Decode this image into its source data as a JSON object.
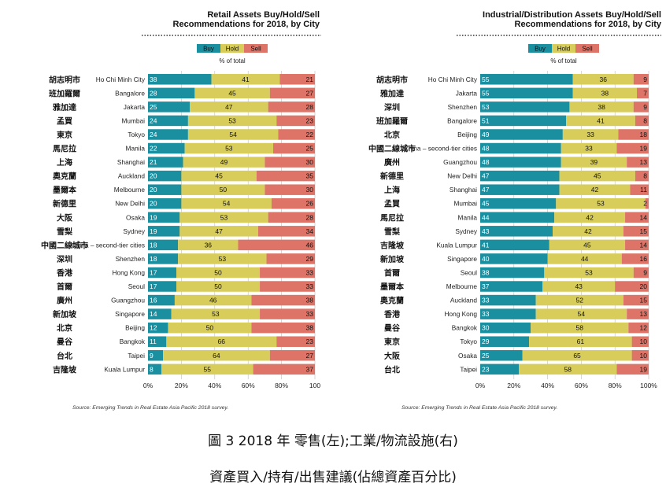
{
  "captions": {
    "line1": "圖 3 2018 年  零售(左);工業/物流設施(右)",
    "line2": "資產買入/持有/出售建議(佔總資產百分比)"
  },
  "chart_data": [
    {
      "type": "bar",
      "stacked": true,
      "orientation": "horizontal",
      "title": "Retail Assets Buy/Hold/Sell\nRecommendations for 2018, by City",
      "legend": [
        "Buy",
        "Hold",
        "Sell"
      ],
      "legend_placement": "top",
      "subtitle": "% of total",
      "xlim": [
        0,
        100
      ],
      "xticks": [
        "0%",
        "20%",
        "40%",
        "60%",
        "80%",
        "100"
      ],
      "colors": {
        "Buy": "#1a8fa0",
        "Hold": "#d8cd5a",
        "Sell": "#dd7467"
      },
      "source": "Source: Emerging Trends in Real Estate Asia Pacific 2018 survey.",
      "categories": [
        "Ho Chi Minh City",
        "Bangalore",
        "Jakarta",
        "Mumbai",
        "Tokyo",
        "Manila",
        "Shanghai",
        "Auckland",
        "Melbourne",
        "New Delhi",
        "Osaka",
        "Sydney",
        "China – second-tier cities",
        "Shenzhen",
        "Hong Kong",
        "Seoul",
        "Guangzhou",
        "Singapore",
        "Beijing",
        "Bangkok",
        "Taipei",
        "Kuala Lumpur"
      ],
      "chinese_labels": [
        "胡志明市",
        "班加羅爾",
        "雅加達",
        "孟買",
        "東京",
        "馬尼拉",
        "上海",
        "奧克蘭",
        "墨爾本",
        "新德里",
        "大阪",
        "雪梨",
        "中國二線城市",
        "深圳",
        "香港",
        "首爾",
        "廣州",
        "新加坡",
        "北京",
        "曼谷",
        "台北",
        "吉隆坡"
      ],
      "series": [
        {
          "name": "Buy",
          "values": [
            38,
            28,
            25,
            24,
            24,
            22,
            21,
            20,
            20,
            20,
            19,
            19,
            18,
            18,
            17,
            17,
            16,
            14,
            12,
            11,
            9,
            8
          ]
        },
        {
          "name": "Hold",
          "values": [
            41,
            45,
            47,
            53,
            54,
            53,
            49,
            45,
            50,
            54,
            53,
            47,
            36,
            53,
            50,
            50,
            46,
            53,
            50,
            66,
            64,
            55
          ]
        },
        {
          "name": "Sell",
          "values": [
            21,
            27,
            28,
            23,
            22,
            25,
            30,
            35,
            30,
            26,
            28,
            34,
            46,
            29,
            33,
            33,
            38,
            33,
            38,
            23,
            27,
            37
          ]
        }
      ]
    },
    {
      "type": "bar",
      "stacked": true,
      "orientation": "horizontal",
      "title": "Industrial/Distribution Assets Buy/Hold/Sell\nRecommendations for 2018, by City",
      "legend": [
        "Buy",
        "Hold",
        "Sell"
      ],
      "legend_placement": "top",
      "subtitle": "% of total",
      "xlim": [
        0,
        100
      ],
      "xticks": [
        "0%",
        "20%",
        "40%",
        "60%",
        "80%",
        "100%"
      ],
      "colors": {
        "Buy": "#1a8fa0",
        "Hold": "#d8cd5a",
        "Sell": "#dd7467"
      },
      "source": "Source: Emerging Trends in Real Estate Asia Pacific 2018 survey.",
      "categories": [
        "Ho Chi Minh City",
        "Jakarta",
        "Shenzhen",
        "Bangalore",
        "Beijing",
        "China – second-tier cities",
        "Guangzhou",
        "New Delhi",
        "Shanghai",
        "Mumbai",
        "Manila",
        "Sydney",
        "Kuala Lumpur",
        "Singapore",
        "Seoul",
        "Melbourne",
        "Auckland",
        "Hong Kong",
        "Bangkok",
        "Tokyo",
        "Osaka",
        "Taipei"
      ],
      "chinese_labels": [
        "胡志明市",
        "雅加達",
        "深圳",
        "班加羅爾",
        "北京",
        "中國二線城市",
        "廣州",
        "新德里",
        "上海",
        "孟買",
        "馬尼拉",
        "雪梨",
        "吉隆坡",
        "新加坡",
        "首爾",
        "墨爾本",
        "奧克蘭",
        "香港",
        "曼谷",
        "東京",
        "大阪",
        "台北"
      ],
      "series": [
        {
          "name": "Buy",
          "values": [
            55,
            55,
            53,
            51,
            49,
            48,
            48,
            47,
            47,
            45,
            44,
            43,
            41,
            40,
            38,
            37,
            33,
            33,
            30,
            29,
            25,
            23
          ]
        },
        {
          "name": "Hold",
          "values": [
            36,
            38,
            38,
            41,
            33,
            33,
            39,
            45,
            42,
            53,
            42,
            42,
            45,
            44,
            53,
            43,
            52,
            54,
            58,
            61,
            65,
            58
          ]
        },
        {
          "name": "Sell",
          "values": [
            9,
            7,
            9,
            8,
            18,
            19,
            13,
            8,
            11,
            2,
            14,
            15,
            14,
            16,
            9,
            20,
            15,
            13,
            12,
            10,
            10,
            19
          ]
        }
      ]
    }
  ]
}
